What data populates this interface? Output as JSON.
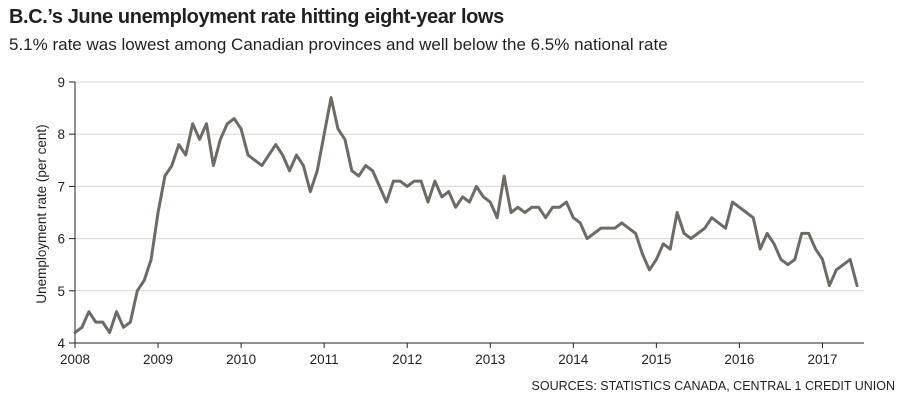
{
  "chart_data": {
    "type": "line",
    "title": "B.C.’s June unemployment rate hitting eight-year lows",
    "subtitle": "5.1% rate was lowest among Canadian provinces and well below the 6.5% national rate",
    "xlabel": "",
    "ylabel": "Unemployment rate (per cent)",
    "ylim": [
      4,
      9
    ],
    "yticks": [
      "4",
      "5",
      "6",
      "7",
      "8",
      "9"
    ],
    "xlim": [
      2008,
      2017.5
    ],
    "xticks": [
      "2008",
      "2009",
      "2010",
      "2011",
      "2012",
      "2013",
      "2014",
      "2015",
      "2016",
      "2017"
    ],
    "grid": true,
    "source": "SOURCES: STATISTICS CANADA, CENTRAL 1 CREDIT UNION",
    "line_color": "#6e6a66",
    "x_start": "2008-01",
    "frequency": "monthly",
    "values": [
      4.2,
      4.3,
      4.6,
      4.4,
      4.4,
      4.2,
      4.6,
      4.3,
      4.4,
      5.0,
      5.2,
      5.6,
      6.5,
      7.2,
      7.4,
      7.8,
      7.6,
      8.2,
      7.9,
      8.2,
      7.4,
      7.9,
      8.2,
      8.3,
      8.1,
      7.6,
      7.5,
      7.4,
      7.6,
      7.8,
      7.6,
      7.3,
      7.6,
      7.4,
      6.9,
      7.3,
      8.0,
      8.7,
      8.1,
      7.9,
      7.3,
      7.2,
      7.4,
      7.3,
      7.0,
      6.7,
      7.1,
      7.1,
      7.0,
      7.1,
      7.1,
      6.7,
      7.1,
      6.8,
      6.9,
      6.6,
      6.8,
      6.7,
      7.0,
      6.8,
      6.7,
      6.4,
      7.2,
      6.5,
      6.6,
      6.5,
      6.6,
      6.6,
      6.4,
      6.6,
      6.6,
      6.7,
      6.4,
      6.3,
      6.0,
      6.1,
      6.2,
      6.2,
      6.2,
      6.3,
      6.2,
      6.1,
      5.7,
      5.4,
      5.6,
      5.9,
      5.8,
      6.5,
      6.1,
      6.0,
      6.1,
      6.2,
      6.4,
      6.3,
      6.2,
      6.7,
      6.6,
      6.5,
      6.4,
      5.8,
      6.1,
      5.9,
      5.6,
      5.5,
      5.6,
      6.1,
      6.1,
      5.8,
      5.6,
      5.1,
      5.4,
      5.5,
      5.6,
      5.1
    ]
  }
}
